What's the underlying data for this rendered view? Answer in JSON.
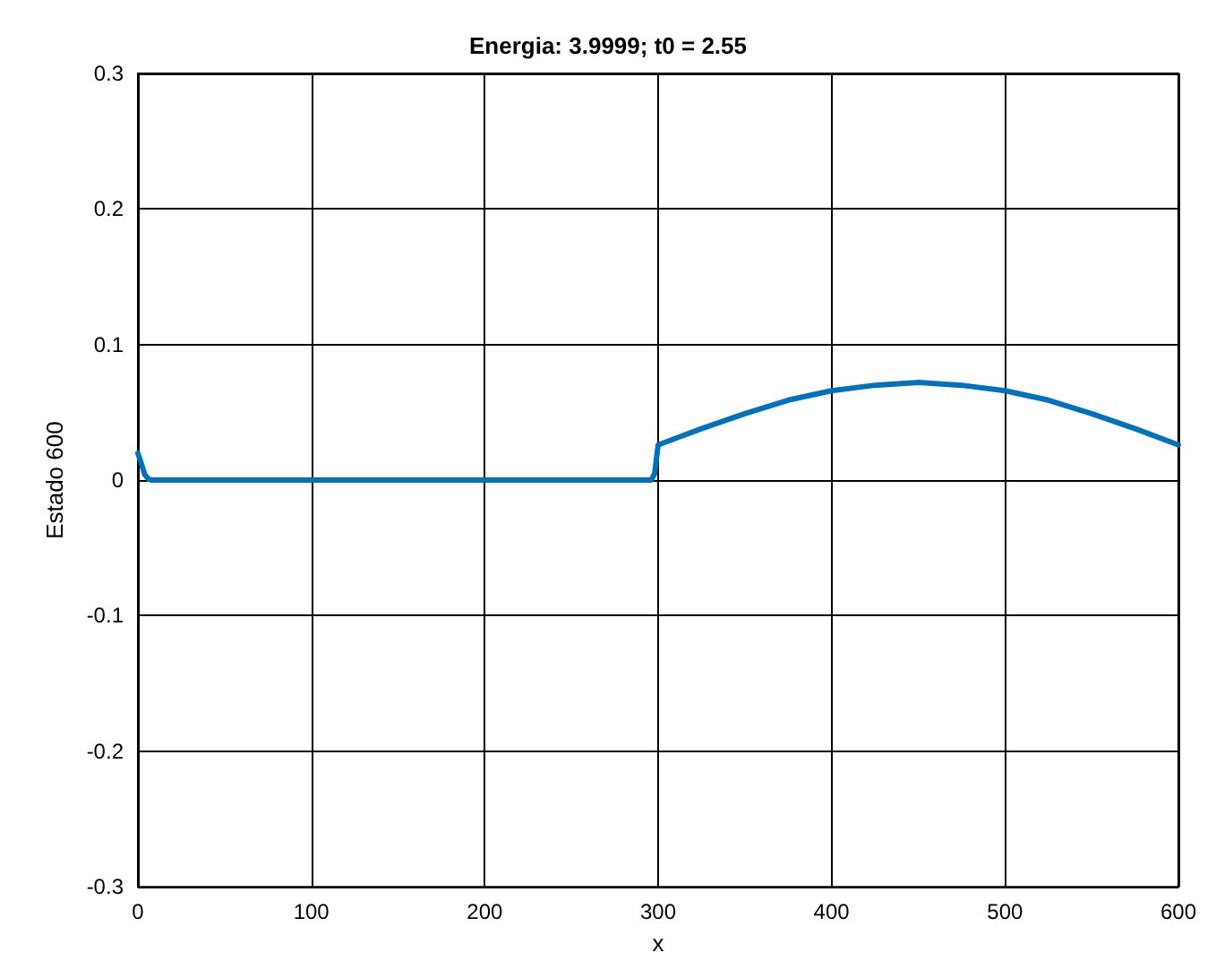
{
  "chart_data": {
    "type": "line",
    "title": "Energia: 3.9999; t0 = 2.55",
    "xlabel": "x",
    "ylabel": "Estado 600",
    "x": [
      0,
      2,
      4,
      6,
      8,
      100,
      200,
      290,
      296,
      298,
      300,
      325,
      350,
      375,
      400,
      425,
      450,
      475,
      500,
      525,
      550,
      575,
      600
    ],
    "series": [
      {
        "color": "#0072bd",
        "values": [
          0.02,
          0.012,
          0.004,
          0.001,
          0,
          0,
          0,
          0,
          0,
          0.005,
          0.026,
          0.038,
          0.049,
          0.059,
          0.066,
          0.07,
          0.072,
          0.07,
          0.066,
          0.059,
          0.049,
          0.038,
          0.026
        ]
      }
    ],
    "xlim": [
      0,
      600
    ],
    "xticks": [
      0,
      100,
      200,
      300,
      400,
      500,
      600
    ],
    "ylim": [
      -0.3,
      0.3
    ],
    "yticks": [
      -0.3,
      -0.2,
      -0.1,
      0,
      0.1,
      0.2,
      0.3
    ],
    "grid": true,
    "marker": "none",
    "line_style": "solid"
  }
}
